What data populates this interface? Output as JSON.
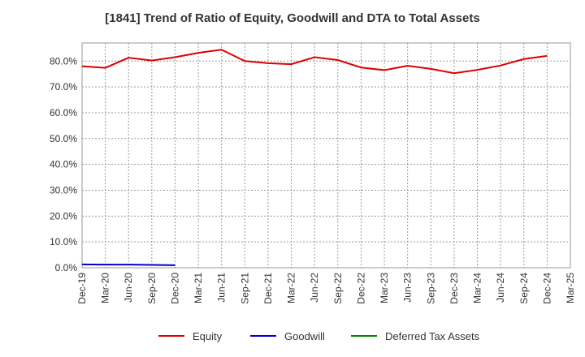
{
  "chart_data": {
    "type": "line",
    "title": "[1841]  Trend of Ratio of Equity, Goodwill and DTA to Total Assets",
    "xlabel": "",
    "ylabel": "",
    "ylim": [
      0,
      87
    ],
    "y_ticks": [
      "0.0%",
      "10.0%",
      "20.0%",
      "30.0%",
      "40.0%",
      "50.0%",
      "60.0%",
      "70.0%",
      "80.0%"
    ],
    "y_tick_values": [
      0,
      10,
      20,
      30,
      40,
      50,
      60,
      70,
      80
    ],
    "categories": [
      "Dec-19",
      "Mar-20",
      "Jun-20",
      "Sep-20",
      "Dec-20",
      "Mar-21",
      "Jun-21",
      "Sep-21",
      "Dec-21",
      "Mar-22",
      "Jun-22",
      "Sep-22",
      "Dec-22",
      "Mar-23",
      "Jun-23",
      "Sep-23",
      "Dec-23",
      "Mar-24",
      "Jun-24",
      "Sep-24",
      "Dec-24",
      "Mar-25"
    ],
    "grid": true,
    "legend_position": "bottom",
    "series": [
      {
        "name": "Equity",
        "color": "#dd0000",
        "values": [
          78.0,
          77.4,
          81.3,
          80.2,
          81.5,
          83.2,
          84.4,
          80.0,
          79.2,
          78.8,
          81.5,
          80.4,
          77.5,
          76.5,
          78.2,
          77.0,
          75.3,
          76.6,
          78.3,
          80.8,
          82.0,
          null
        ]
      },
      {
        "name": "Goodwill",
        "color": "#0000cc",
        "values": [
          1.3,
          1.2,
          1.2,
          1.1,
          1.0,
          null,
          null,
          null,
          null,
          null,
          null,
          null,
          null,
          null,
          null,
          null,
          null,
          null,
          null,
          null,
          null,
          null
        ]
      },
      {
        "name": "Deferred Tax Assets",
        "color": "#008800",
        "values": [
          null,
          null,
          null,
          null,
          null,
          null,
          null,
          null,
          null,
          null,
          null,
          null,
          null,
          null,
          null,
          null,
          null,
          null,
          null,
          null,
          null,
          null
        ]
      }
    ]
  }
}
